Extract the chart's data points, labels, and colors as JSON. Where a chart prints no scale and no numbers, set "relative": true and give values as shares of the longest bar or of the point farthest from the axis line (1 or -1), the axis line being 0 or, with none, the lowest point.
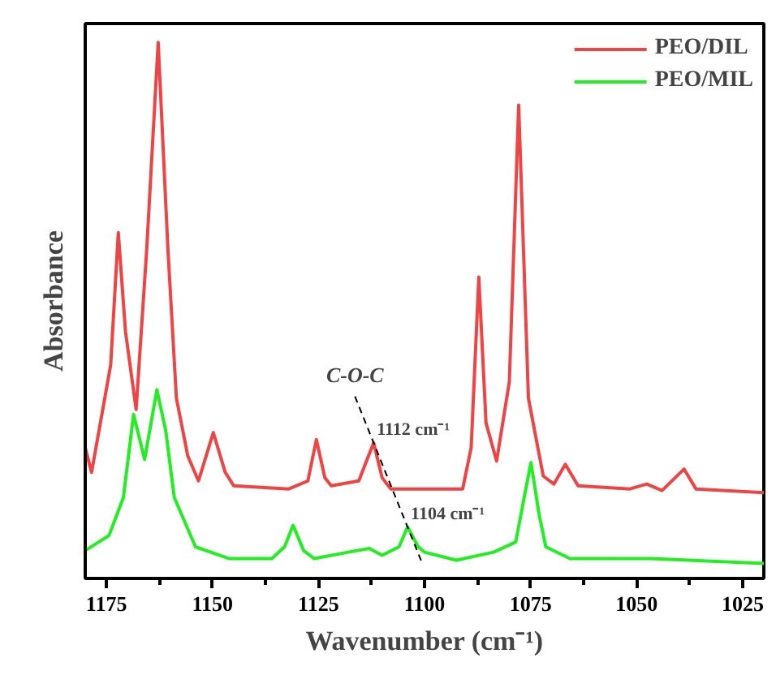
{
  "chart_data": {
    "type": "line",
    "relative": true,
    "xlabel": "Wavenumber (cm⁻¹)",
    "ylabel": "Absorbance",
    "xlim": [
      1180,
      1020
    ],
    "xticks": [
      1175,
      1150,
      1125,
      1100,
      1075,
      1050,
      1025
    ],
    "grid": false,
    "legend": "top right",
    "tick_labels": "x",
    "annotations": [
      "C-O-C",
      {
        "text": "1112 cm⁻¹",
        "x": 1112,
        "y": 0.253
      },
      {
        "text": "1104 cm⁻¹",
        "x": 1104,
        "y": 0.096
      }
    ],
    "series": [
      {
        "name": "PEO/DIL",
        "color": "#ee4444",
        "x": [
          1180,
          1178.5,
          1174,
          1172.2,
          1170.5,
          1168,
          1165.5,
          1162.8,
          1160.5,
          1158.5,
          1155.8,
          1153.3,
          1149.8,
          1147,
          1145,
          1132,
          1127.5,
          1125.5,
          1123.5,
          1122,
          1115.5,
          1112,
          1110,
          1108,
          1091,
          1089,
          1087.2,
          1085.5,
          1083,
          1080,
          1077.8,
          1075.5,
          1072,
          1069.5,
          1066.8,
          1063.8,
          1051.6,
          1047.6,
          1044,
          1038.8,
          1036,
          1020
        ],
        "values": [
          0.244,
          0.198,
          0.398,
          0.645,
          0.46,
          0.315,
          0.614,
          1,
          0.614,
          0.336,
          0.228,
          0.182,
          0.272,
          0.198,
          0.173,
          0.167,
          0.182,
          0.259,
          0.188,
          0.173,
          0.182,
          0.253,
          0.188,
          0.167,
          0.167,
          0.244,
          0.562,
          0.29,
          0.219,
          0.367,
          0.883,
          0.336,
          0.191,
          0.176,
          0.213,
          0.173,
          0.167,
          0.176,
          0.164,
          0.204,
          0.167,
          0.16
        ]
      },
      {
        "name": "PEO/MIL",
        "color": "#22ee22",
        "x": [
          1180,
          1174.4,
          1171,
          1168.6,
          1166,
          1163.1,
          1161,
          1159,
          1154,
          1146,
          1136,
          1133,
          1131,
          1128.5,
          1126,
          1118,
          1113,
          1110,
          1106,
          1104,
          1101.5,
          1100,
          1092.5,
          1083.7,
          1078.5,
          1076.5,
          1074.9,
          1073,
          1071.4,
          1065.7,
          1046.5,
          1020
        ],
        "values": [
          0.052,
          0.08,
          0.151,
          0.306,
          0.222,
          0.352,
          0.275,
          0.151,
          0.059,
          0.037,
          0.037,
          0.059,
          0.099,
          0.052,
          0.037,
          0.049,
          0.056,
          0.043,
          0.059,
          0.096,
          0.059,
          0.049,
          0.034,
          0.049,
          0.068,
          0.151,
          0.216,
          0.12,
          0.059,
          0.037,
          0.037,
          0.028
        ]
      }
    ]
  }
}
